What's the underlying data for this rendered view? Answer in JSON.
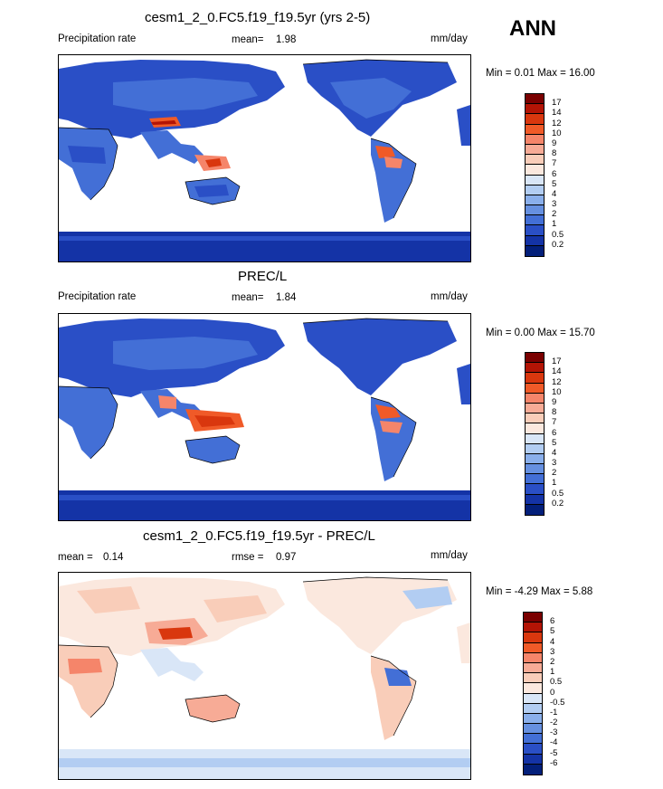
{
  "season": "ANN",
  "panels": [
    {
      "title": "cesm1_2_0.FC5.f19_f19.5yr (yrs 2-5)",
      "left_label": "Precipitation rate",
      "mean_label": "mean=",
      "mean_value": "1.98",
      "right_label": "mm/day",
      "minmax_text": "Min =   0.01 Max =  16.00",
      "levels": [
        "17",
        "14",
        "12",
        "10",
        "9",
        "8",
        "7",
        "6",
        "5",
        "4",
        "3",
        "2",
        "1",
        "0.5",
        "0.2"
      ],
      "colors": [
        "#7a0000",
        "#b31405",
        "#d9370e",
        "#f05a28",
        "#f5856a",
        "#f7ab96",
        "#f9cdb9",
        "#fbe8de",
        "#d9e6f7",
        "#b2cdf2",
        "#8aafeb",
        "#6690e0",
        "#436fd6",
        "#2a4fc6",
        "#1433a6",
        "#031f7a"
      ]
    },
    {
      "title": "PREC/L",
      "left_label": "Precipitation rate",
      "mean_label": "mean=",
      "mean_value": "1.84",
      "right_label": "mm/day",
      "minmax_text": "Min =   0.00 Max =  15.70",
      "levels": [
        "17",
        "14",
        "12",
        "10",
        "9",
        "8",
        "7",
        "6",
        "5",
        "4",
        "3",
        "2",
        "1",
        "0.5",
        "0.2"
      ],
      "colors": [
        "#7a0000",
        "#b31405",
        "#d9370e",
        "#f05a28",
        "#f5856a",
        "#f7ab96",
        "#f9cdb9",
        "#fbe8de",
        "#d9e6f7",
        "#b2cdf2",
        "#8aafeb",
        "#6690e0",
        "#436fd6",
        "#2a4fc6",
        "#1433a6",
        "#031f7a"
      ]
    },
    {
      "title": "cesm1_2_0.FC5.f19_f19.5yr - PREC/L",
      "left_label": "mean =",
      "mean_label": "rmse =",
      "mean_value": "0.14",
      "rmse_value": "0.97",
      "right_label": "mm/day",
      "minmax_text": "Min =  -4.29 Max =   5.88",
      "levels": [
        "6",
        "5",
        "4",
        "3",
        "2",
        "1",
        "0.5",
        "0",
        "-0.5",
        "-1",
        "-2",
        "-3",
        "-4",
        "-5",
        "-6"
      ],
      "colors": [
        "#7a0000",
        "#b31405",
        "#d9370e",
        "#f05a28",
        "#f5856a",
        "#f7ab96",
        "#f9cdb9",
        "#fbe8de",
        "#d9e6f7",
        "#b2cdf2",
        "#8aafeb",
        "#6690e0",
        "#436fd6",
        "#2a4fc6",
        "#1433a6",
        "#031f7a"
      ]
    }
  ]
}
